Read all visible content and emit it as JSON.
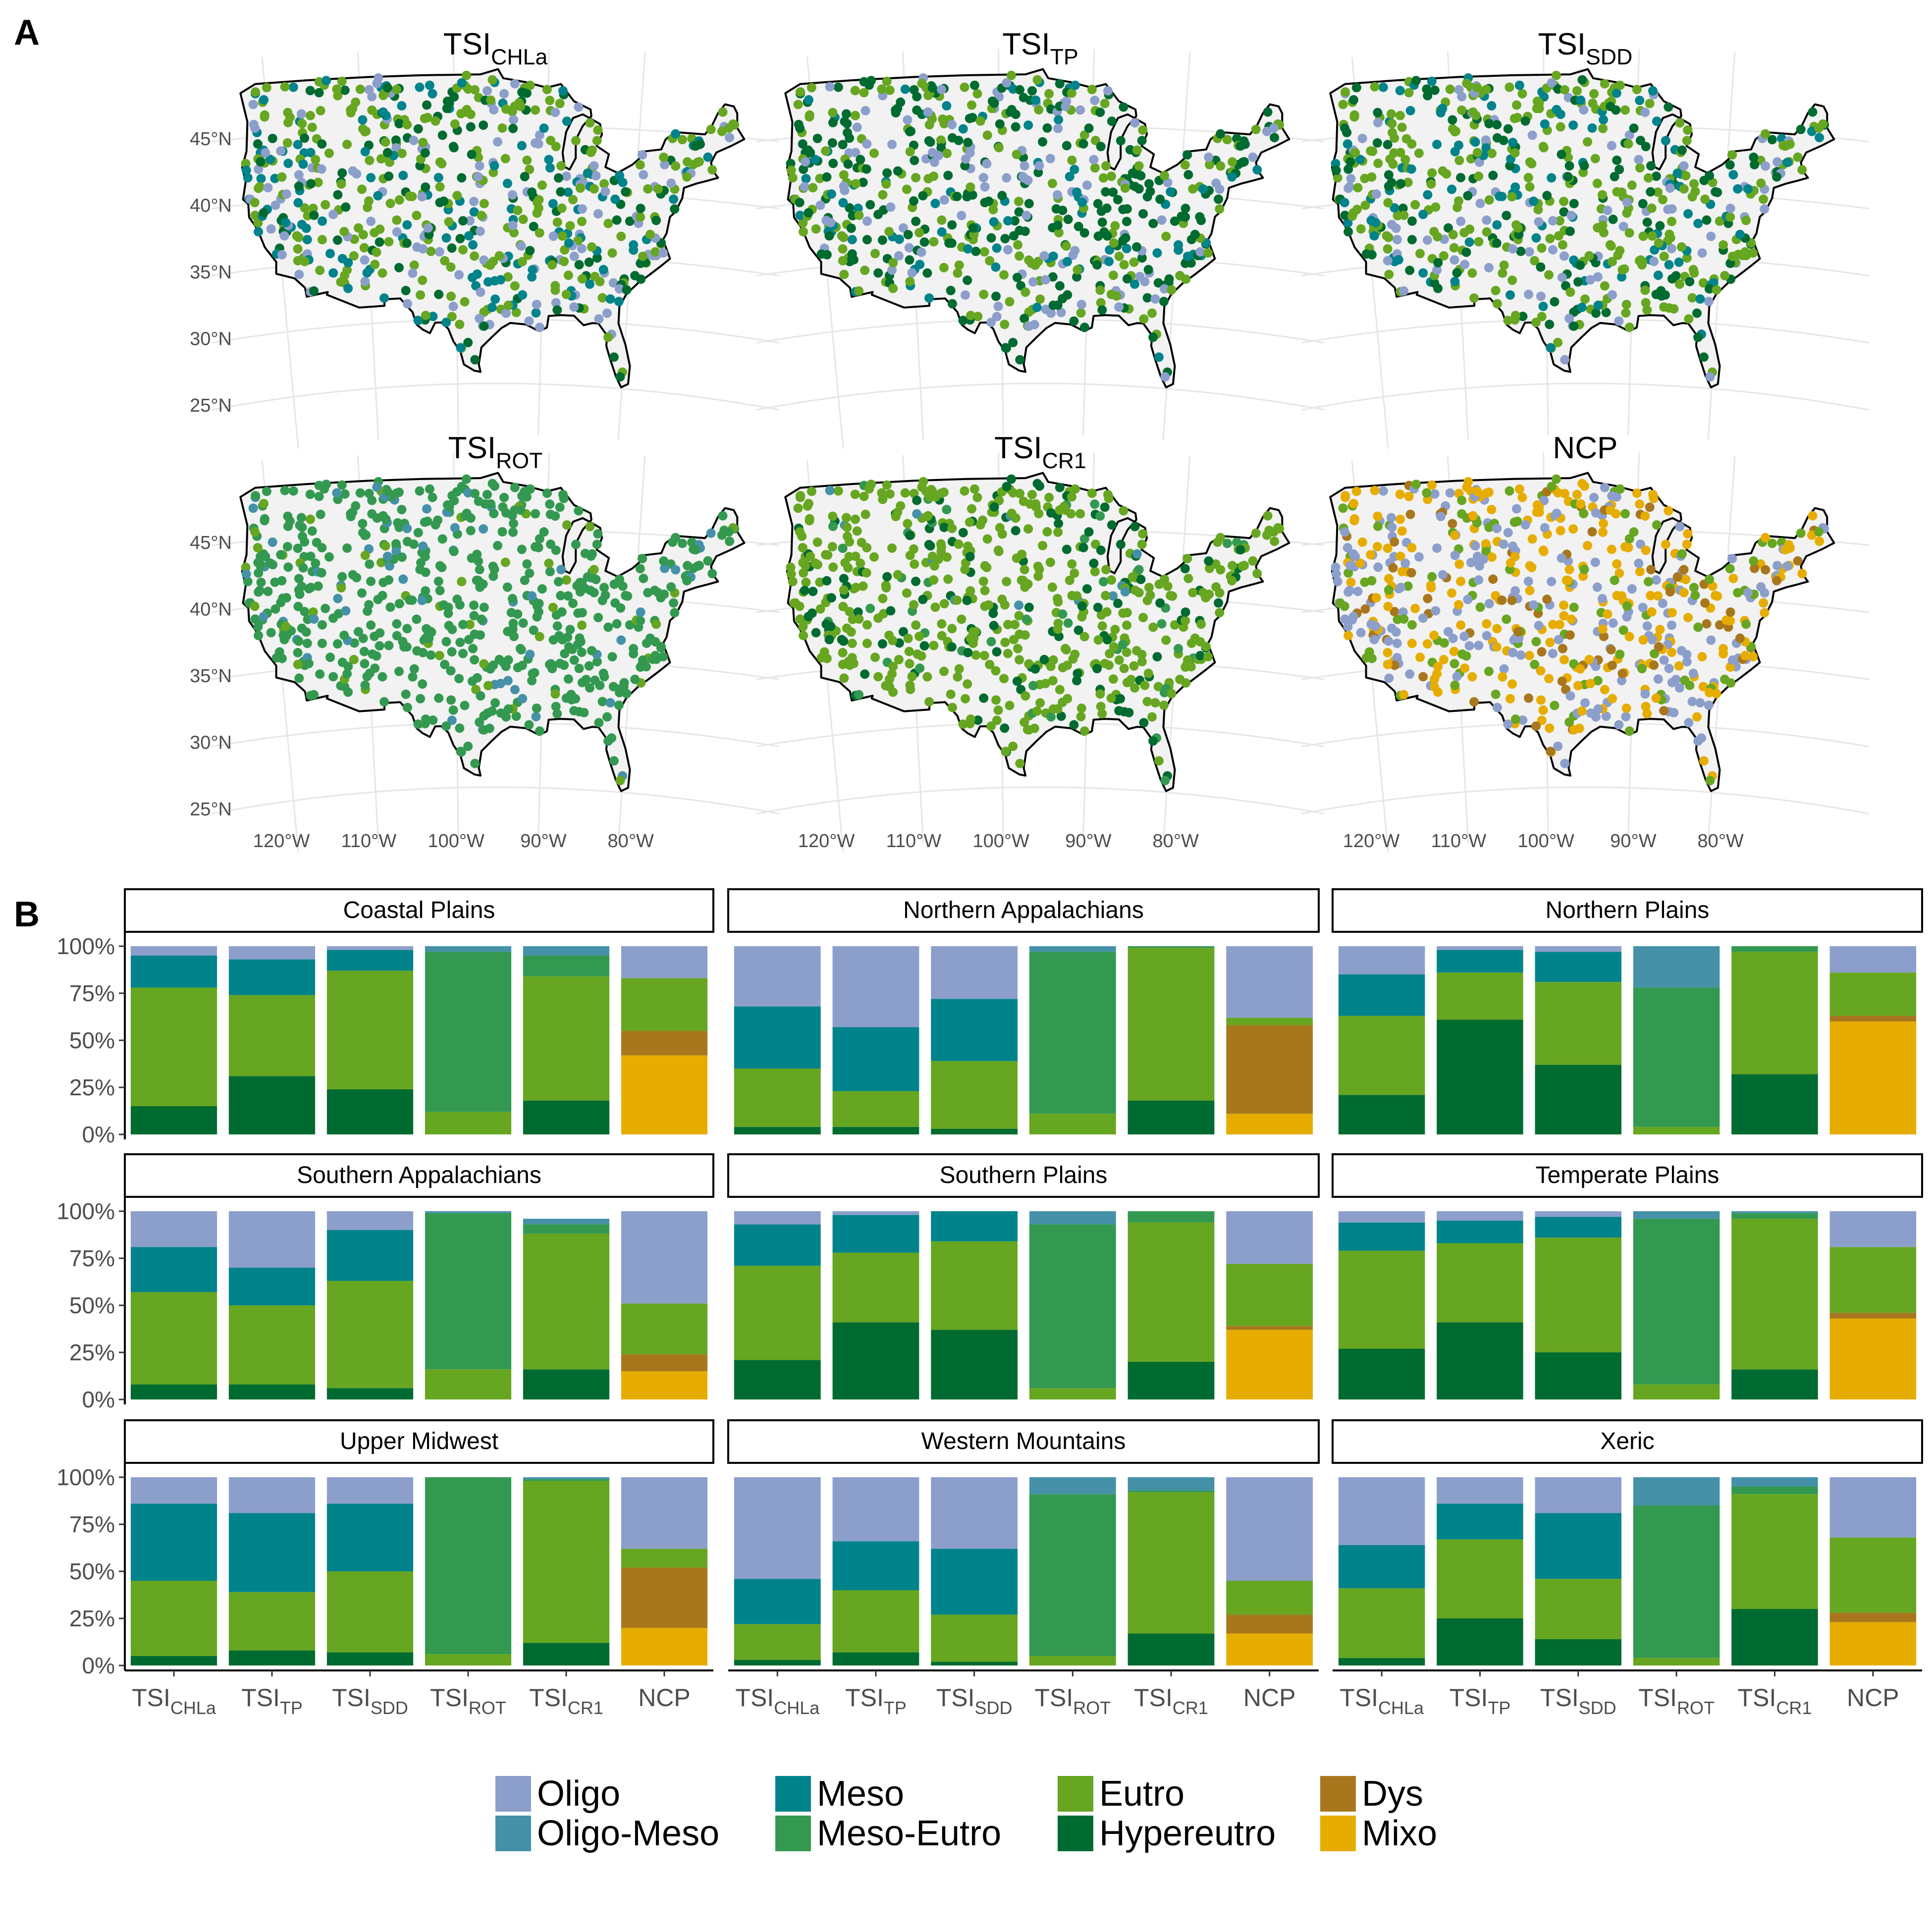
{
  "panel_labels": {
    "a": "A",
    "b": "B"
  },
  "colors": {
    "Oligo": "#8c9fcb",
    "Oligo-Meso": "#4591a8",
    "Meso": "#00838a",
    "Meso-Eutro": "#339950",
    "Eutro": "#66a620",
    "Hypereutro": "#006b30",
    "Dys": "#a8771d",
    "Mixo": "#e6ad00",
    "land": "#f2f2f2",
    "grid": "#e6e6e6",
    "strip_border": "#000000"
  },
  "legend": {
    "items": [
      {
        "label": "Oligo",
        "key": "Oligo"
      },
      {
        "label": "Oligo-Meso",
        "key": "Oligo-Meso"
      },
      {
        "label": "Meso",
        "key": "Meso"
      },
      {
        "label": "Meso-Eutro",
        "key": "Meso-Eutro"
      },
      {
        "label": "Eutro",
        "key": "Eutro"
      },
      {
        "label": "Hypereutro",
        "key": "Hypereutro"
      },
      {
        "label": "Dys",
        "key": "Dys"
      },
      {
        "label": "Mixo",
        "key": "Mixo"
      }
    ]
  },
  "chart_data": [
    {
      "type": "scatter",
      "subtype": "map",
      "panel": "A",
      "x_ticks": [
        "120°W",
        "110°W",
        "100°W",
        "90°W",
        "80°W"
      ],
      "y_ticks": [
        "45°N",
        "40°N",
        "35°N",
        "30°N",
        "25°N"
      ],
      "xlim": [
        -125,
        -66
      ],
      "ylim": [
        24,
        49
      ],
      "maps": [
        {
          "title_main": "TSI",
          "title_sub": "CHLa",
          "weights": {
            "Oligo": 0.18,
            "Meso": 0.2,
            "Eutro": 0.42,
            "Hypereutro": 0.2
          }
        },
        {
          "title_main": "TSI",
          "title_sub": "TP",
          "weights": {
            "Oligo": 0.16,
            "Meso": 0.14,
            "Eutro": 0.32,
            "Hypereutro": 0.38
          }
        },
        {
          "title_main": "TSI",
          "title_sub": "SDD",
          "weights": {
            "Oligo": 0.15,
            "Meso": 0.18,
            "Eutro": 0.42,
            "Hypereutro": 0.25
          }
        },
        {
          "title_main": "TSI",
          "title_sub": "ROT",
          "weights": {
            "Oligo-Meso": 0.08,
            "Meso-Eutro": 0.86,
            "Eutro": 0.06
          }
        },
        {
          "title_main": "TSI",
          "title_sub": "CR1",
          "weights": {
            "Oligo-Meso": 0.02,
            "Meso-Eutro": 0.06,
            "Eutro": 0.7,
            "Hypereutro": 0.22
          }
        },
        {
          "title_main": "NCP",
          "title_sub": "",
          "weights": {
            "Oligo": 0.32,
            "Eutro": 0.18,
            "Dys": 0.12,
            "Mixo": 0.38
          }
        }
      ]
    },
    {
      "type": "bar",
      "subtype": "stacked-100",
      "panel": "B",
      "categories": [
        {
          "main": "TSI",
          "sub": "CHLa"
        },
        {
          "main": "TSI",
          "sub": "TP"
        },
        {
          "main": "TSI",
          "sub": "SDD"
        },
        {
          "main": "TSI",
          "sub": "ROT"
        },
        {
          "main": "TSI",
          "sub": "CR1"
        },
        {
          "main": "NCP",
          "sub": ""
        }
      ],
      "y_ticks": [
        "0%",
        "25%",
        "50%",
        "75%",
        "100%"
      ],
      "ylim": [
        0,
        1
      ],
      "stack_order_top_to_bottom": [
        "Oligo",
        "Oligo-Meso",
        "Meso",
        "Meso-Eutro",
        "Eutro",
        "Hypereutro",
        "Dys",
        "Mixo"
      ],
      "facets": [
        {
          "name": "Coastal Plains",
          "bars": [
            {
              "Oligo": 0.05,
              "Meso": 0.17,
              "Eutro": 0.63,
              "Hypereutro": 0.15
            },
            {
              "Oligo": 0.07,
              "Meso": 0.19,
              "Eutro": 0.43,
              "Hypereutro": 0.31
            },
            {
              "Oligo": 0.02,
              "Meso": 0.11,
              "Eutro": 0.63,
              "Hypereutro": 0.24
            },
            {
              "Oligo-Meso": 0.03,
              "Meso-Eutro": 0.85,
              "Eutro": 0.12
            },
            {
              "Oligo-Meso": 0.05,
              "Meso-Eutro": 0.11,
              "Eutro": 0.66,
              "Hypereutro": 0.18
            },
            {
              "Oligo": 0.17,
              "Eutro": 0.28,
              "Dys": 0.13,
              "Mixo": 0.42
            }
          ]
        },
        {
          "name": "Northern Appalachians",
          "bars": [
            {
              "Oligo": 0.32,
              "Meso": 0.33,
              "Eutro": 0.31,
              "Hypereutro": 0.04
            },
            {
              "Oligo": 0.43,
              "Meso": 0.34,
              "Eutro": 0.19,
              "Hypereutro": 0.04
            },
            {
              "Oligo": 0.28,
              "Meso": 0.33,
              "Eutro": 0.36,
              "Hypereutro": 0.03
            },
            {
              "Oligo-Meso": 0.03,
              "Meso-Eutro": 0.86,
              "Eutro": 0.11
            },
            {
              "Meso-Eutro": 0.01,
              "Eutro": 0.81,
              "Hypereutro": 0.18
            },
            {
              "Oligo": 0.38,
              "Eutro": 0.04,
              "Dys": 0.47,
              "Mixo": 0.11
            }
          ]
        },
        {
          "name": "Northern Plains",
          "bars": [
            {
              "Oligo": 0.15,
              "Meso": 0.22,
              "Eutro": 0.42,
              "Hypereutro": 0.21
            },
            {
              "Oligo": 0.02,
              "Meso": 0.12,
              "Eutro": 0.25,
              "Hypereutro": 0.61
            },
            {
              "Oligo": 0.03,
              "Meso": 0.16,
              "Eutro": 0.44,
              "Hypereutro": 0.37
            },
            {
              "Oligo-Meso": 0.22,
              "Meso-Eutro": 0.74,
              "Eutro": 0.04
            },
            {
              "Meso-Eutro": 0.03,
              "Eutro": 0.65,
              "Hypereutro": 0.32
            },
            {
              "Oligo": 0.14,
              "Eutro": 0.23,
              "Dys": 0.03,
              "Mixo": 0.6
            }
          ]
        },
        {
          "name": "Southern Appalachians",
          "bars": [
            {
              "Oligo": 0.19,
              "Meso": 0.24,
              "Eutro": 0.49,
              "Hypereutro": 0.08
            },
            {
              "Oligo": 0.3,
              "Meso": 0.2,
              "Eutro": 0.42,
              "Hypereutro": 0.08
            },
            {
              "Oligo": 0.1,
              "Meso": 0.27,
              "Eutro": 0.57,
              "Hypereutro": 0.06
            },
            {
              "Oligo-Meso": 0.01,
              "Meso-Eutro": 0.83,
              "Eutro": 0.16
            },
            {
              "Oligo-Meso": 0.03,
              "Meso-Eutro": 0.05,
              "Eutro": 0.72,
              "Hypereutro": 0.16
            },
            {
              "Oligo": 0.49,
              "Eutro": 0.27,
              "Dys": 0.09,
              "Mixo": 0.15
            }
          ]
        },
        {
          "name": "Southern Plains",
          "bars": [
            {
              "Oligo": 0.07,
              "Meso": 0.22,
              "Eutro": 0.5,
              "Hypereutro": 0.21
            },
            {
              "Oligo": 0.02,
              "Meso": 0.2,
              "Eutro": 0.37,
              "Hypereutro": 0.41
            },
            {
              "Meso": 0.16,
              "Eutro": 0.47,
              "Hypereutro": 0.37
            },
            {
              "Oligo-Meso": 0.07,
              "Meso-Eutro": 0.87,
              "Eutro": 0.06
            },
            {
              "Meso-Eutro": 0.06,
              "Eutro": 0.74,
              "Hypereutro": 0.2
            },
            {
              "Oligo": 0.28,
              "Eutro": 0.33,
              "Dys": 0.02,
              "Mixo": 0.37
            }
          ]
        },
        {
          "name": "Temperate Plains",
          "bars": [
            {
              "Oligo": 0.06,
              "Meso": 0.15,
              "Eutro": 0.52,
              "Hypereutro": 0.27
            },
            {
              "Oligo": 0.05,
              "Meso": 0.12,
              "Eutro": 0.42,
              "Hypereutro": 0.41
            },
            {
              "Oligo": 0.03,
              "Meso": 0.11,
              "Eutro": 0.61,
              "Hypereutro": 0.25
            },
            {
              "Oligo-Meso": 0.04,
              "Meso-Eutro": 0.88,
              "Eutro": 0.08
            },
            {
              "Oligo-Meso": 0.01,
              "Meso-Eutro": 0.03,
              "Eutro": 0.8,
              "Hypereutro": 0.16
            },
            {
              "Oligo": 0.19,
              "Eutro": 0.35,
              "Dys": 0.03,
              "Mixo": 0.43
            }
          ]
        },
        {
          "name": "Upper Midwest",
          "bars": [
            {
              "Oligo": 0.14,
              "Meso": 0.41,
              "Eutro": 0.4,
              "Hypereutro": 0.05
            },
            {
              "Oligo": 0.19,
              "Meso": 0.42,
              "Eutro": 0.31,
              "Hypereutro": 0.08
            },
            {
              "Oligo": 0.14,
              "Meso": 0.36,
              "Eutro": 0.43,
              "Hypereutro": 0.07
            },
            {
              "Meso-Eutro": 0.94,
              "Eutro": 0.06
            },
            {
              "Oligo-Meso": 0.01,
              "Meso-Eutro": 0.01,
              "Eutro": 0.86,
              "Hypereutro": 0.12
            },
            {
              "Oligo": 0.38,
              "Eutro": 0.1,
              "Dys": 0.32,
              "Mixo": 0.2
            }
          ]
        },
        {
          "name": "Western Mountains",
          "bars": [
            {
              "Oligo": 0.54,
              "Meso": 0.24,
              "Eutro": 0.19,
              "Hypereutro": 0.03
            },
            {
              "Oligo": 0.34,
              "Meso": 0.26,
              "Eutro": 0.33,
              "Hypereutro": 0.07
            },
            {
              "Oligo": 0.38,
              "Meso": 0.35,
              "Eutro": 0.25,
              "Hypereutro": 0.02
            },
            {
              "Oligo-Meso": 0.09,
              "Meso-Eutro": 0.86,
              "Eutro": 0.05
            },
            {
              "Oligo-Meso": 0.07,
              "Meso-Eutro": 0.01,
              "Eutro": 0.75,
              "Hypereutro": 0.17
            },
            {
              "Oligo": 0.55,
              "Eutro": 0.18,
              "Dys": 0.1,
              "Mixo": 0.17
            }
          ]
        },
        {
          "name": "Xeric",
          "bars": [
            {
              "Oligo": 0.36,
              "Meso": 0.23,
              "Eutro": 0.37,
              "Hypereutro": 0.04
            },
            {
              "Oligo": 0.14,
              "Meso": 0.19,
              "Eutro": 0.42,
              "Hypereutro": 0.25
            },
            {
              "Oligo": 0.19,
              "Meso": 0.35,
              "Eutro": 0.32,
              "Hypereutro": 0.14
            },
            {
              "Oligo-Meso": 0.15,
              "Meso-Eutro": 0.81,
              "Eutro": 0.04
            },
            {
              "Oligo-Meso": 0.05,
              "Meso-Eutro": 0.04,
              "Eutro": 0.61,
              "Hypereutro": 0.3
            },
            {
              "Oligo": 0.32,
              "Eutro": 0.4,
              "Dys": 0.05,
              "Mixo": 0.23
            }
          ]
        }
      ]
    }
  ]
}
